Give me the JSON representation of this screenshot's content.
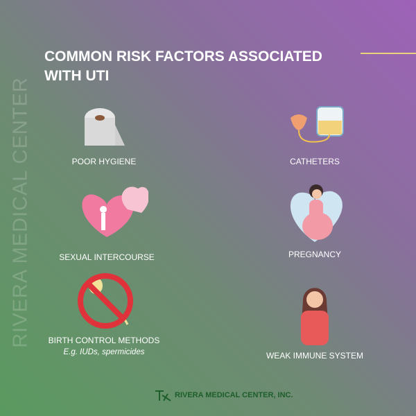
{
  "watermark": "RIVERA MEDICAL CENTER",
  "title": "COMMON RISK FACTORS ASSOCIATED WITH UTI",
  "accent_color": "#e8d27a",
  "items": [
    {
      "label": "POOR HYGIENE",
      "icon": "toilet-paper-icon"
    },
    {
      "label": "CATHETERS",
      "icon": "catheter-bag-icon"
    },
    {
      "label": "SEXUAL INTERCOURSE",
      "icon": "hearts-couple-icon"
    },
    {
      "label": "PREGNANCY",
      "icon": "pregnant-woman-icon"
    },
    {
      "label": "BIRTH CONTROL METHODS",
      "sub": "E.g. IUDs, spermicides",
      "icon": "no-sperm-icon"
    },
    {
      "label": "WEAK IMMUNE SYSTEM",
      "icon": "sick-woman-icon"
    }
  ],
  "footer": {
    "logo_text": "RIVERA MEDICAL CENTER, INC."
  }
}
